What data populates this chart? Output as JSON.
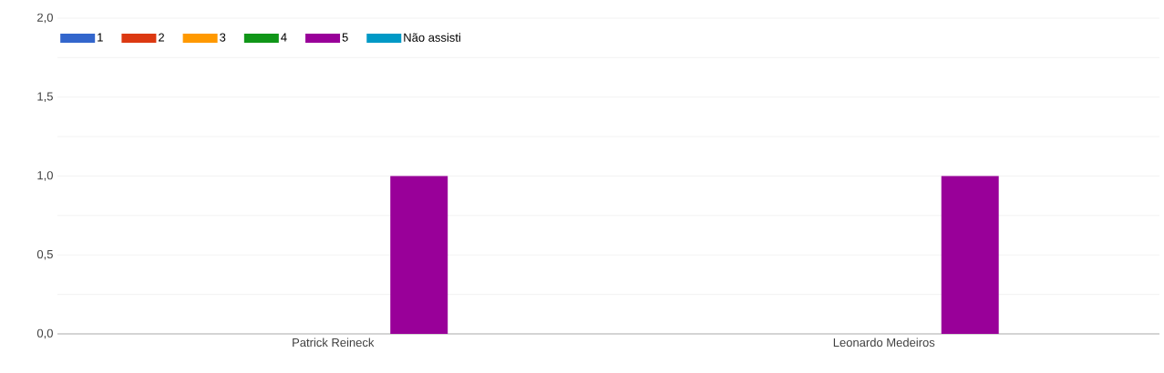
{
  "chart_data": {
    "type": "bar",
    "categories": [
      "Patrick Reineck",
      "Leonardo Medeiros"
    ],
    "series": [
      {
        "name": "1",
        "color": "#3366cc",
        "values": [
          0,
          0
        ]
      },
      {
        "name": "2",
        "color": "#dc3912",
        "values": [
          0,
          0
        ]
      },
      {
        "name": "3",
        "color": "#ff9900",
        "values": [
          0,
          0
        ]
      },
      {
        "name": "4",
        "color": "#109618",
        "values": [
          0,
          0
        ]
      },
      {
        "name": "5",
        "color": "#990099",
        "values": [
          1,
          1
        ]
      },
      {
        "name": "Não assisti",
        "color": "#0099c6",
        "values": [
          0,
          0
        ]
      }
    ],
    "ylim": [
      0,
      2
    ],
    "yticks": [
      {
        "value": 0,
        "label": "0,0"
      },
      {
        "value": 0.25,
        "label": null
      },
      {
        "value": 0.5,
        "label": "0,5"
      },
      {
        "value": 0.75,
        "label": null
      },
      {
        "value": 1,
        "label": "1,0"
      },
      {
        "value": 1.25,
        "label": null
      },
      {
        "value": 1.5,
        "label": "1,5"
      },
      {
        "value": 1.75,
        "label": null
      },
      {
        "value": 2,
        "label": "2,0"
      }
    ],
    "grid": "y",
    "legend": "top left"
  }
}
